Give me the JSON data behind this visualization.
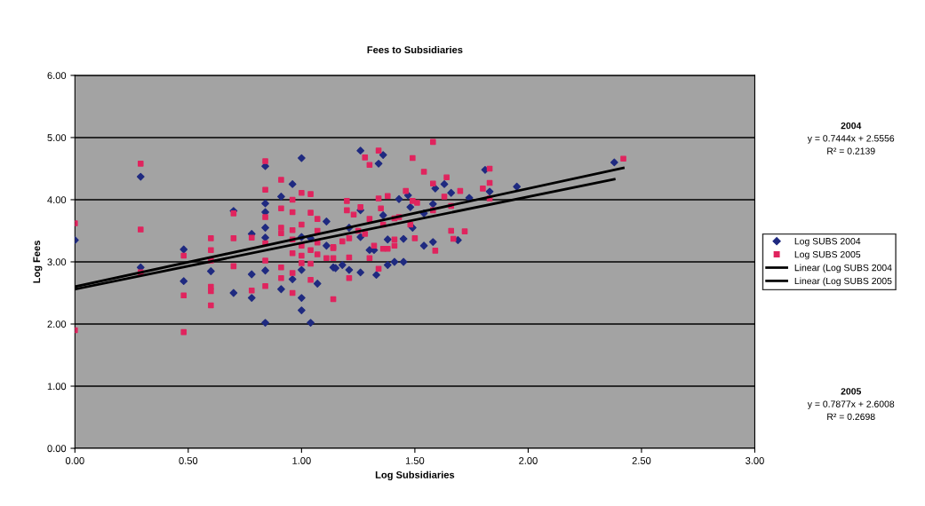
{
  "chart_data": {
    "type": "scatter",
    "title": "Fees to Subsidiaries",
    "xlabel": "Log Subsidiaries",
    "ylabel": "Log Fees",
    "xlim": [
      0,
      3
    ],
    "xticks": [
      {
        "value": 0,
        "label": "0.00"
      },
      {
        "value": 0.5,
        "label": "0.50"
      },
      {
        "value": 1,
        "label": "1.00"
      },
      {
        "value": 1.5,
        "label": "1.50"
      },
      {
        "value": 2,
        "label": "2.00"
      },
      {
        "value": 2.5,
        "label": "2.50"
      },
      {
        "value": 3,
        "label": "3.00"
      }
    ],
    "ylim": [
      0,
      6
    ],
    "yticks": [
      {
        "value": 0,
        "label": "0.00"
      },
      {
        "value": 1,
        "label": "1.00"
      },
      {
        "value": 2,
        "label": "2.00"
      },
      {
        "value": 3,
        "label": "3.00"
      },
      {
        "value": 4,
        "label": "4.00"
      },
      {
        "value": 5,
        "label": "5.00"
      },
      {
        "value": 6,
        "label": "6.00"
      }
    ],
    "grid": "y",
    "legend": "right",
    "series": [
      {
        "name": "Log SUBS 2004",
        "marker": "diamond",
        "color": "#1f2a80",
        "x": [
          0,
          0.29,
          0.29,
          0.48,
          0.48,
          0.6,
          0.7,
          0.7,
          0.78,
          0.78,
          0.78,
          0.84,
          0.84,
          0.84,
          0.84,
          0.84,
          0.84,
          0.84,
          0.91,
          0.91,
          0.96,
          0.96,
          1.0,
          1.0,
          1.0,
          1.0,
          1.0,
          1.04,
          1.04,
          1.07,
          1.11,
          1.11,
          1.14,
          1.15,
          1.18,
          1.26,
          1.26,
          1.34,
          1.36,
          1.21,
          1.21,
          1.26,
          1.26,
          1.3,
          1.32,
          1.33,
          1.36,
          1.38,
          1.38,
          1.41,
          1.45,
          1.45,
          1.43,
          1.47,
          1.48,
          1.49,
          1.54,
          1.58,
          1.54,
          1.58,
          1.59,
          1.63,
          1.66,
          1.74,
          1.69,
          1.81,
          1.83,
          1.95,
          2.38
        ],
        "values": [
          3.35,
          4.37,
          2.91,
          3.2,
          2.69,
          2.85,
          3.82,
          2.5,
          3.45,
          2.8,
          2.42,
          4.54,
          3.94,
          3.8,
          3.55,
          3.39,
          2.86,
          2.02,
          4.05,
          2.56,
          4.25,
          2.72,
          4.67,
          3.4,
          2.87,
          2.42,
          2.22,
          3.38,
          2.02,
          2.65,
          3.65,
          3.26,
          2.91,
          2.9,
          2.95,
          3.83,
          4.79,
          4.58,
          4.72,
          3.55,
          2.87,
          2.83,
          3.4,
          3.19,
          3.19,
          2.79,
          3.75,
          3.36,
          2.95,
          3.0,
          3.0,
          3.37,
          4.01,
          4.07,
          3.88,
          3.55,
          3.26,
          3.32,
          3.78,
          3.93,
          4.18,
          4.25,
          4.11,
          4.03,
          3.35,
          4.48,
          4.13,
          4.21,
          4.6
        ]
      },
      {
        "name": "Log SUBS 2005",
        "marker": "square",
        "color": "#e0245e",
        "x": [
          0,
          0,
          0.29,
          0.29,
          0.29,
          0.48,
          0.48,
          0.48,
          0.6,
          0.6,
          0.6,
          0.6,
          0.6,
          0.6,
          0.7,
          0.7,
          0.7,
          0.78,
          0.78,
          0.84,
          0.84,
          0.84,
          0.84,
          0.84,
          0.84,
          0.91,
          0.91,
          0.91,
          0.91,
          0.91,
          0.91,
          0.96,
          0.96,
          0.96,
          0.96,
          0.96,
          0.96,
          0.96,
          1.0,
          1.0,
          1.0,
          1.0,
          1.0,
          1.04,
          1.04,
          1.04,
          1.04,
          1.04,
          1.07,
          1.07,
          1.07,
          1.07,
          1.11,
          1.14,
          1.14,
          1.14,
          1.14,
          1.2,
          1.2,
          1.23,
          1.25,
          1.21,
          1.18,
          1.21,
          1.21,
          1.28,
          1.3,
          1.34,
          1.28,
          1.3,
          1.32,
          1.3,
          1.34,
          1.34,
          1.35,
          1.36,
          1.36,
          1.38,
          1.41,
          1.41,
          1.38,
          1.46,
          1.49,
          1.51,
          1.43,
          1.41,
          1.48,
          1.5,
          1.59,
          1.58,
          1.58,
          1.49,
          1.54,
          1.58,
          1.64,
          1.7,
          1.63,
          1.66,
          1.66,
          1.67,
          1.72,
          1.83,
          1.83,
          1.8,
          1.83,
          2.42,
          1.26
        ],
        "values": [
          3.62,
          1.9,
          4.58,
          3.52,
          2.83,
          3.1,
          2.46,
          1.87,
          3.38,
          3.19,
          3.02,
          2.6,
          2.53,
          2.3,
          3.78,
          3.38,
          2.93,
          3.39,
          2.54,
          4.62,
          4.16,
          3.72,
          3.3,
          3.02,
          2.61,
          4.32,
          3.86,
          3.55,
          3.46,
          2.91,
          2.74,
          4.0,
          3.8,
          3.51,
          3.36,
          3.14,
          2.82,
          2.5,
          4.11,
          3.6,
          3.26,
          3.1,
          2.98,
          4.09,
          3.79,
          3.19,
          2.97,
          2.71,
          3.69,
          3.5,
          3.31,
          3.12,
          3.06,
          3.22,
          2.4,
          3.24,
          3.06,
          3.98,
          3.83,
          3.76,
          3.5,
          3.38,
          3.33,
          3.07,
          2.74,
          4.68,
          4.56,
          4.79,
          3.45,
          3.69,
          3.26,
          3.06,
          2.89,
          4.02,
          3.86,
          3.6,
          3.21,
          3.21,
          3.26,
          3.36,
          4.06,
          4.14,
          3.98,
          3.95,
          3.72,
          3.7,
          3.6,
          3.38,
          3.18,
          3.83,
          4.93,
          4.67,
          4.45,
          4.26,
          4.36,
          4.14,
          4.05,
          3.9,
          3.5,
          3.37,
          3.49,
          4.5,
          4.27,
          4.18,
          4.02,
          4.66,
          3.88
        ]
      },
      {
        "name": "Linear (Log SUBS 2004",
        "type": "line",
        "marker": "none",
        "color": "#000000",
        "x": [
          0,
          2.38
        ],
        "values": [
          2.56,
          4.33
        ]
      },
      {
        "name": "Linear (Log SUBS 2005",
        "type": "line",
        "marker": "none",
        "color": "#000000",
        "x": [
          0,
          2.42
        ],
        "values": [
          2.6,
          4.51
        ]
      }
    ],
    "annotations": [
      "2004",
      "y = 0.7444x + 2.5556",
      "R² = 0.2139",
      "2005",
      "y = 0.7877x + 2.6008",
      "R² = 0.2698"
    ]
  }
}
